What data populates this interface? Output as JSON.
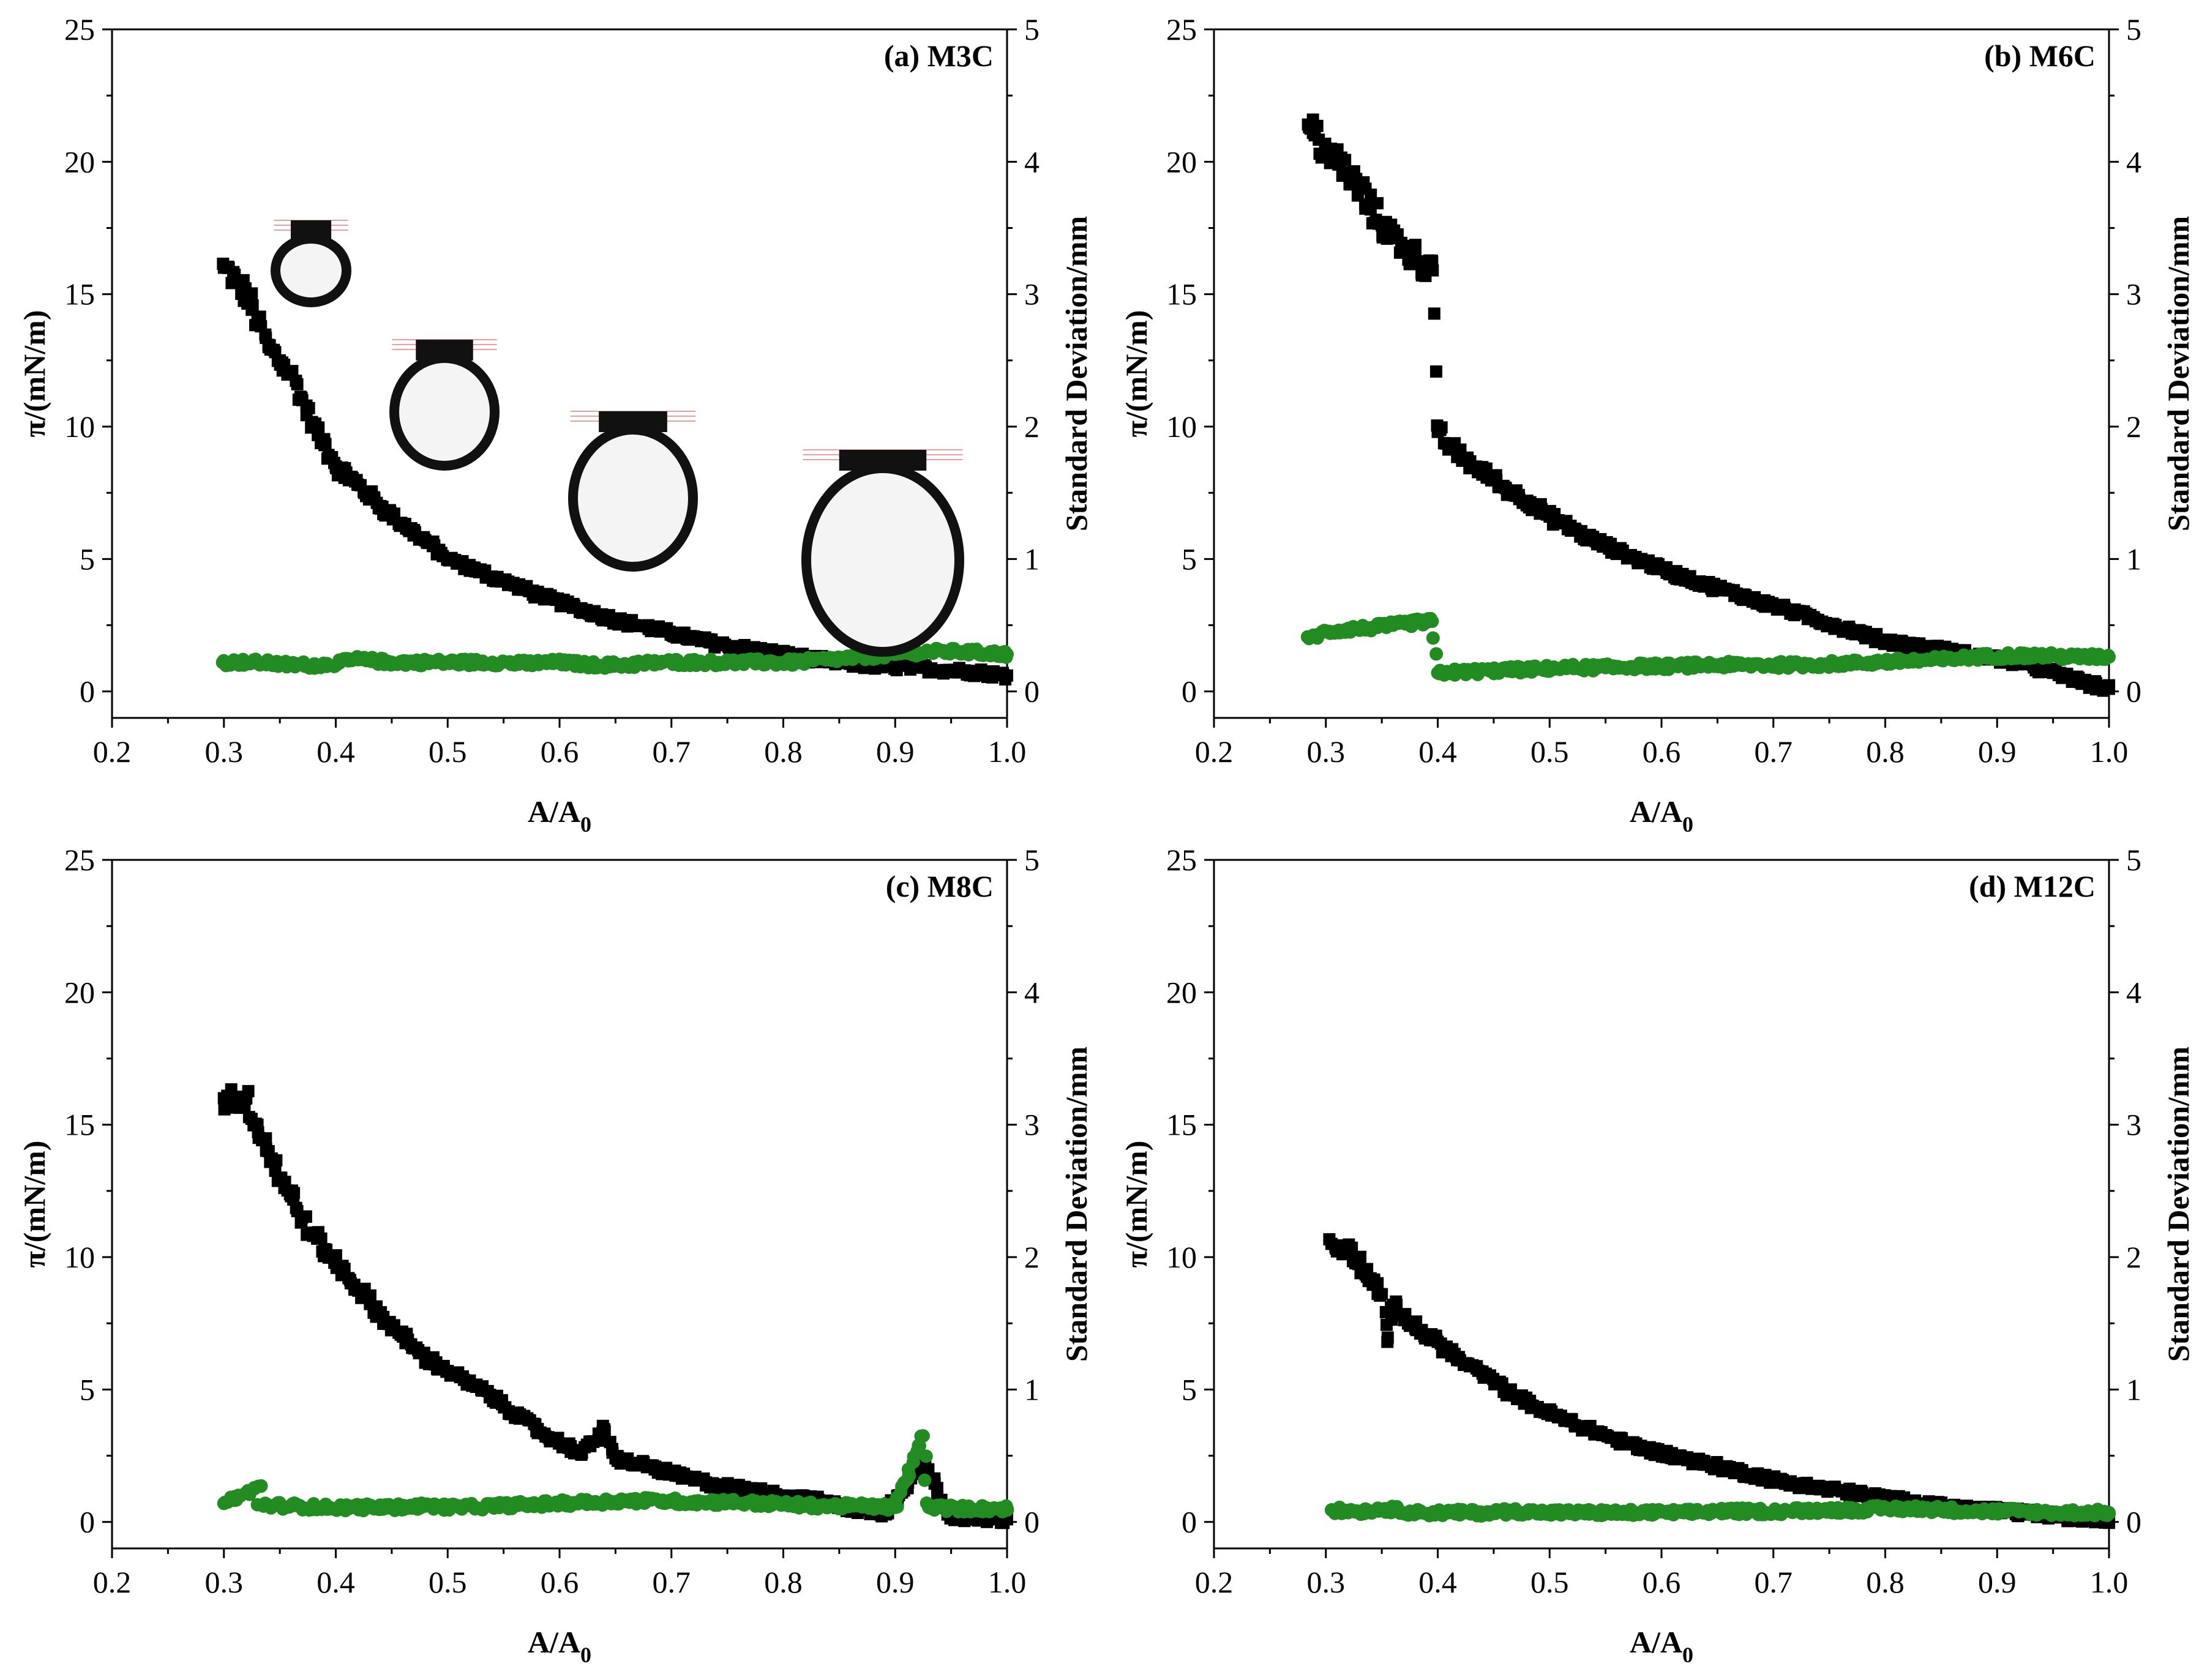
{
  "colors": {
    "pi_series": "#000000",
    "sd_series": "#228b22",
    "axis": "#000000"
  },
  "chart_data": [
    {
      "type": "scatter",
      "label": "(a) M3C",
      "xlabel": "A/A",
      "xlabel_sub": "0",
      "ylabel": "π/(mN/m)",
      "y2label": "Standard Deviation/mm",
      "xlim": [
        0.2,
        1.0
      ],
      "ylim": [
        -1,
        25
      ],
      "y2lim": [
        -0.2,
        5
      ],
      "xticks": [
        "0.2",
        "0.3",
        "0.4",
        "0.5",
        "0.6",
        "0.7",
        "0.8",
        "0.9",
        "1.0"
      ],
      "yticks": [
        "0",
        "5",
        "10",
        "15",
        "20",
        "25"
      ],
      "y2ticks": [
        "0",
        "1",
        "2",
        "3",
        "4",
        "5"
      ],
      "inset_images": "pendant drop profiles",
      "series": [
        {
          "name": "π",
          "marker": "square",
          "axis": "left",
          "x": [
            0.3,
            0.31,
            0.32,
            0.33,
            0.34,
            0.35,
            0.36,
            0.37,
            0.38,
            0.39,
            0.4,
            0.42,
            0.44,
            0.46,
            0.48,
            0.5,
            0.53,
            0.56,
            0.59,
            0.62,
            0.65,
            0.68,
            0.71,
            0.74,
            0.77,
            0.8,
            0.83,
            0.86,
            0.89,
            0.92,
            0.95,
            0.98,
            1.0
          ],
          "y": [
            16,
            15.5,
            15,
            14,
            13,
            12.5,
            12,
            11,
            10,
            9.3,
            8.5,
            7.8,
            7,
            6.3,
            5.7,
            5,
            4.5,
            4,
            3.5,
            3.1,
            2.7,
            2.4,
            2.1,
            1.8,
            1.6,
            1.4,
            1.2,
            1.05,
            0.95,
            0.9,
            0.8,
            0.7,
            0.6
          ]
        },
        {
          "name": "Standard Deviation",
          "marker": "circle",
          "axis": "right",
          "x": [
            0.3,
            0.33,
            0.36,
            0.39,
            0.42,
            0.45,
            0.48,
            0.51,
            0.54,
            0.57,
            0.6,
            0.63,
            0.66,
            0.69,
            0.72,
            0.75,
            0.78,
            0.81,
            0.84,
            0.87,
            0.9,
            0.93,
            0.96,
            1.0
          ],
          "y": [
            0.22,
            0.22,
            0.2,
            0.2,
            0.24,
            0.22,
            0.22,
            0.22,
            0.22,
            0.21,
            0.22,
            0.2,
            0.2,
            0.22,
            0.22,
            0.22,
            0.22,
            0.22,
            0.24,
            0.26,
            0.28,
            0.3,
            0.3,
            0.28
          ]
        }
      ]
    },
    {
      "type": "scatter",
      "label": "(b) M6C",
      "xlabel": "A/A",
      "xlabel_sub": "0",
      "ylabel": "π/(mN/m)",
      "y2label": "Standard Deviation/mm",
      "xlim": [
        0.2,
        1.0
      ],
      "ylim": [
        -1,
        25
      ],
      "y2lim": [
        -0.2,
        5
      ],
      "xticks": [
        "0.2",
        "0.3",
        "0.4",
        "0.5",
        "0.6",
        "0.7",
        "0.8",
        "0.9",
        "1.0"
      ],
      "yticks": [
        "0",
        "5",
        "10",
        "15",
        "20",
        "25"
      ],
      "y2ticks": [
        "0",
        "1",
        "2",
        "3",
        "4",
        "5"
      ],
      "series": [
        {
          "name": "π",
          "marker": "square",
          "axis": "left",
          "x": [
            0.285,
            0.29,
            0.3,
            0.31,
            0.32,
            0.33,
            0.34,
            0.35,
            0.36,
            0.37,
            0.38,
            0.39,
            0.395,
            0.4,
            0.41,
            0.42,
            0.44,
            0.46,
            0.48,
            0.5,
            0.53,
            0.56,
            0.59,
            0.62,
            0.65,
            0.68,
            0.71,
            0.74,
            0.77,
            0.8,
            0.83,
            0.86,
            0.89,
            0.92,
            0.95,
            0.98,
            1.0
          ],
          "y": [
            21.3,
            21,
            20.5,
            20,
            19.5,
            19,
            18.2,
            17.6,
            17.2,
            16.8,
            16.4,
            16,
            16.2,
            9.8,
            9.3,
            8.9,
            8.3,
            7.7,
            7.2,
            6.6,
            5.9,
            5.3,
            4.8,
            4.3,
            3.9,
            3.5,
            3.1,
            2.7,
            2.3,
            1.9,
            1.7,
            1.5,
            1.3,
            1.1,
            0.7,
            0.3,
            0.1
          ]
        },
        {
          "name": "Standard Deviation",
          "marker": "circle",
          "axis": "right",
          "x": [
            0.285,
            0.3,
            0.32,
            0.34,
            0.36,
            0.38,
            0.395,
            0.4,
            0.43,
            0.46,
            0.49,
            0.52,
            0.55,
            0.58,
            0.61,
            0.64,
            0.67,
            0.7,
            0.73,
            0.76,
            0.79,
            0.82,
            0.85,
            0.88,
            0.91,
            0.94,
            0.97,
            1.0
          ],
          "y": [
            0.4,
            0.45,
            0.47,
            0.48,
            0.5,
            0.52,
            0.53,
            0.14,
            0.15,
            0.16,
            0.17,
            0.18,
            0.18,
            0.19,
            0.19,
            0.2,
            0.2,
            0.2,
            0.2,
            0.21,
            0.22,
            0.23,
            0.24,
            0.26,
            0.27,
            0.27,
            0.26,
            0.26
          ]
        }
      ]
    },
    {
      "type": "scatter",
      "label": "(c) M8C",
      "xlabel": "A/A",
      "xlabel_sub": "0",
      "ylabel": "π/(mN/m)",
      "y2label": "Standard Deviation/mm",
      "xlim": [
        0.2,
        1.0
      ],
      "ylim": [
        -1,
        25
      ],
      "y2lim": [
        -0.2,
        5
      ],
      "xticks": [
        "0.2",
        "0.3",
        "0.4",
        "0.5",
        "0.6",
        "0.7",
        "0.8",
        "0.9",
        "1.0"
      ],
      "yticks": [
        "0",
        "5",
        "10",
        "15",
        "20",
        "25"
      ],
      "y2ticks": [
        "0",
        "1",
        "2",
        "3",
        "4",
        "5"
      ],
      "series": [
        {
          "name": "π",
          "marker": "square",
          "axis": "left",
          "x": [
            0.3,
            0.31,
            0.32,
            0.33,
            0.34,
            0.35,
            0.36,
            0.37,
            0.38,
            0.39,
            0.4,
            0.42,
            0.44,
            0.46,
            0.48,
            0.5,
            0.53,
            0.56,
            0.59,
            0.62,
            0.64,
            0.65,
            0.68,
            0.71,
            0.74,
            0.77,
            0.8,
            0.83,
            0.86,
            0.89,
            0.925,
            0.95,
            0.98,
            1.0
          ],
          "y": [
            16,
            16,
            16,
            15,
            14,
            13,
            12.3,
            11.5,
            10.8,
            10.3,
            9.8,
            8.8,
            7.8,
            7,
            6.2,
            5.7,
            5,
            4.1,
            3.2,
            2.6,
            3.5,
            2.4,
            2.1,
            1.7,
            1.4,
            1.2,
            1,
            0.8,
            0.5,
            0.35,
            2.2,
            0.2,
            0.15,
            0.1
          ]
        },
        {
          "name": "Standard Deviation",
          "marker": "circle",
          "axis": "right",
          "x": [
            0.3,
            0.333,
            0.33,
            0.36,
            0.39,
            0.42,
            0.45,
            0.48,
            0.51,
            0.54,
            0.57,
            0.6,
            0.63,
            0.66,
            0.69,
            0.72,
            0.75,
            0.78,
            0.81,
            0.84,
            0.87,
            0.9,
            0.925,
            0.93,
            0.96,
            1.0
          ],
          "y": [
            0.14,
            0.27,
            0.13,
            0.12,
            0.11,
            0.11,
            0.11,
            0.12,
            0.11,
            0.12,
            0.13,
            0.14,
            0.15,
            0.16,
            0.16,
            0.15,
            0.15,
            0.14,
            0.13,
            0.12,
            0.12,
            0.11,
            0.65,
            0.11,
            0.1,
            0.1
          ]
        }
      ]
    },
    {
      "type": "scatter",
      "label": "(d) M12C",
      "xlabel": "A/A",
      "xlabel_sub": "0",
      "ylabel": "π/(mN/m)",
      "y2label": "Standard Deviation/mm",
      "xlim": [
        0.2,
        1.0
      ],
      "ylim": [
        -1,
        25
      ],
      "y2lim": [
        -0.2,
        5
      ],
      "xticks": [
        "0.2",
        "0.3",
        "0.4",
        "0.5",
        "0.6",
        "0.7",
        "0.8",
        "0.9",
        "1.0"
      ],
      "yticks": [
        "0",
        "5",
        "10",
        "15",
        "20",
        "25"
      ],
      "y2ticks": [
        "0",
        "1",
        "2",
        "3",
        "4",
        "5"
      ],
      "series": [
        {
          "name": "π",
          "marker": "square",
          "axis": "left",
          "x": [
            0.305,
            0.31,
            0.32,
            0.33,
            0.34,
            0.35,
            0.355,
            0.36,
            0.37,
            0.38,
            0.4,
            0.42,
            0.44,
            0.46,
            0.48,
            0.5,
            0.53,
            0.56,
            0.59,
            0.62,
            0.65,
            0.68,
            0.71,
            0.74,
            0.77,
            0.8,
            0.83,
            0.86,
            0.89,
            0.92,
            0.95,
            0.98,
            1.0
          ],
          "y": [
            10.5,
            10.3,
            10.4,
            9.8,
            9.2,
            8.6,
            6.8,
            8.2,
            7.8,
            7.3,
            6.8,
            6.1,
            5.6,
            5,
            4.5,
            4.1,
            3.6,
            3.1,
            2.7,
            2.4,
            2.1,
            1.8,
            1.5,
            1.3,
            1.1,
            0.9,
            0.7,
            0.55,
            0.45,
            0.35,
            0.25,
            0.1,
            0.1
          ]
        },
        {
          "name": "Standard Deviation",
          "marker": "circle",
          "axis": "right",
          "x": [
            0.305,
            0.33,
            0.355,
            0.38,
            0.41,
            0.44,
            0.47,
            0.5,
            0.53,
            0.56,
            0.59,
            0.62,
            0.65,
            0.68,
            0.71,
            0.74,
            0.77,
            0.8,
            0.83,
            0.86,
            0.89,
            0.92,
            0.95,
            0.98,
            1.0
          ],
          "y": [
            0.09,
            0.08,
            0.1,
            0.07,
            0.07,
            0.07,
            0.08,
            0.07,
            0.07,
            0.07,
            0.07,
            0.07,
            0.08,
            0.08,
            0.08,
            0.09,
            0.09,
            0.1,
            0.1,
            0.09,
            0.08,
            0.08,
            0.07,
            0.07,
            0.07
          ]
        }
      ]
    }
  ]
}
